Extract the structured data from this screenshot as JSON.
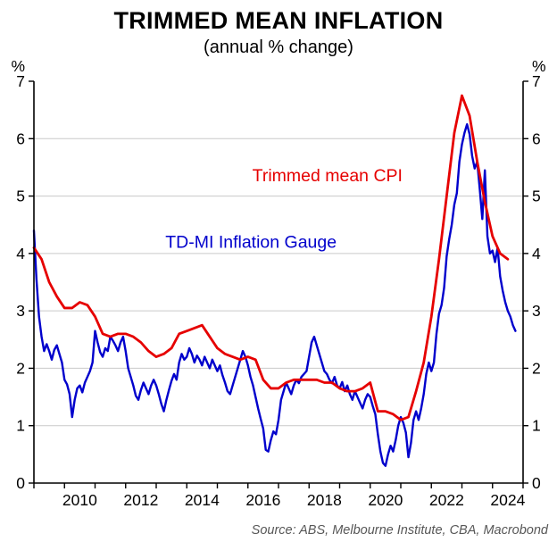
{
  "title": "TRIMMED MEAN INFLATION",
  "subtitle": "(annual % change)",
  "source": "Source: ABS, Melbourne Institute, CBA, Macrobond",
  "chart_data": {
    "type": "line",
    "title": "TRIMMED MEAN INFLATION",
    "subtitle": "(annual % change)",
    "unit_label_left": "%",
    "unit_label_right": "%",
    "ylim": [
      0,
      7
    ],
    "yticks": [
      0,
      1,
      2,
      3,
      4,
      5,
      6,
      7
    ],
    "xlim": [
      2009,
      2025
    ],
    "xtick_labels": [
      2010,
      2012,
      2014,
      2016,
      2018,
      2020,
      2022,
      2024
    ],
    "xtick_label_offset": 0.5,
    "grid": "horizontal",
    "legend_position": "inline-annotations",
    "colors": {
      "grid": "#c9c9c9",
      "axis": "#000000",
      "background": "#ffffff"
    },
    "annotations": [
      {
        "id": "trimmed-mean-cpi-label",
        "text": "Trimmed mean CPI",
        "color": "#e60000",
        "x": 2018.6,
        "y": 5.26
      },
      {
        "id": "td-mi-gauge-label",
        "text": "TD-MI Inflation Gauge",
        "color": "#0000cc",
        "x": 2016.1,
        "y": 4.1
      }
    ],
    "series": [
      {
        "id": "trimmed-mean-cpi",
        "name": "Trimmed mean CPI",
        "color": "#e60000",
        "line_width": 2.8,
        "x_start": 2009.0,
        "x_step": 0.25,
        "values": [
          4.1,
          3.9,
          3.5,
          3.25,
          3.05,
          3.05,
          3.15,
          3.1,
          2.9,
          2.6,
          2.55,
          2.6,
          2.6,
          2.55,
          2.45,
          2.3,
          2.2,
          2.25,
          2.35,
          2.6,
          2.65,
          2.7,
          2.75,
          2.55,
          2.35,
          2.25,
          2.2,
          2.15,
          2.2,
          2.15,
          1.8,
          1.65,
          1.65,
          1.75,
          1.8,
          1.8,
          1.8,
          1.8,
          1.75,
          1.75,
          1.65,
          1.6,
          1.6,
          1.65,
          1.75,
          1.25,
          1.25,
          1.2,
          1.1,
          1.15,
          1.6,
          2.1,
          2.9,
          3.9,
          5.0,
          6.1,
          6.75,
          6.4,
          5.6,
          4.9,
          4.3,
          4.0,
          3.9
        ]
      },
      {
        "id": "td-mi-inflation-gauge",
        "name": "TD-MI Inflation Gauge",
        "color": "#0000cc",
        "line_width": 2.4,
        "x_start": 2009.0,
        "x_step": 0.0833333,
        "values": [
          4.4,
          3.55,
          2.9,
          2.55,
          2.3,
          2.42,
          2.3,
          2.15,
          2.32,
          2.4,
          2.25,
          2.1,
          1.8,
          1.72,
          1.55,
          1.15,
          1.45,
          1.65,
          1.7,
          1.58,
          1.75,
          1.85,
          1.95,
          2.1,
          2.65,
          2.45,
          2.28,
          2.2,
          2.35,
          2.3,
          2.55,
          2.48,
          2.4,
          2.3,
          2.45,
          2.55,
          2.3,
          2.0,
          1.85,
          1.7,
          1.52,
          1.45,
          1.62,
          1.75,
          1.65,
          1.55,
          1.7,
          1.8,
          1.7,
          1.55,
          1.38,
          1.25,
          1.45,
          1.62,
          1.78,
          1.9,
          1.8,
          2.1,
          2.25,
          2.15,
          2.2,
          2.35,
          2.25,
          2.1,
          2.22,
          2.15,
          2.05,
          2.2,
          2.1,
          2.0,
          2.15,
          2.05,
          1.95,
          2.05,
          1.88,
          1.75,
          1.6,
          1.55,
          1.7,
          1.85,
          2.0,
          2.15,
          2.3,
          2.2,
          2.05,
          1.85,
          1.7,
          1.5,
          1.3,
          1.12,
          0.95,
          0.58,
          0.55,
          0.75,
          0.9,
          0.85,
          1.1,
          1.45,
          1.6,
          1.75,
          1.65,
          1.55,
          1.7,
          1.8,
          1.74,
          1.85,
          1.9,
          1.95,
          2.2,
          2.45,
          2.55,
          2.4,
          2.25,
          2.1,
          1.95,
          1.9,
          1.8,
          1.74,
          1.85,
          1.7,
          1.65,
          1.76,
          1.6,
          1.7,
          1.55,
          1.45,
          1.6,
          1.5,
          1.4,
          1.3,
          1.45,
          1.55,
          1.5,
          1.34,
          1.2,
          0.85,
          0.55,
          0.35,
          0.3,
          0.5,
          0.65,
          0.55,
          0.75,
          1.0,
          1.15,
          1.05,
          0.88,
          0.45,
          0.7,
          1.1,
          1.25,
          1.1,
          1.3,
          1.55,
          1.9,
          2.1,
          1.95,
          2.1,
          2.6,
          2.95,
          3.1,
          3.4,
          3.95,
          4.25,
          4.5,
          4.85,
          5.05,
          5.6,
          5.9,
          6.1,
          6.25,
          6.08,
          5.7,
          5.48,
          5.6,
          5.12,
          4.6,
          5.45,
          4.3,
          4.0,
          4.05,
          3.85,
          4.1,
          3.6,
          3.35,
          3.15,
          3.0,
          2.9,
          2.75,
          2.65
        ]
      }
    ],
    "source": "Source: ABS, Melbourne Institute, CBA, Macrobond"
  }
}
